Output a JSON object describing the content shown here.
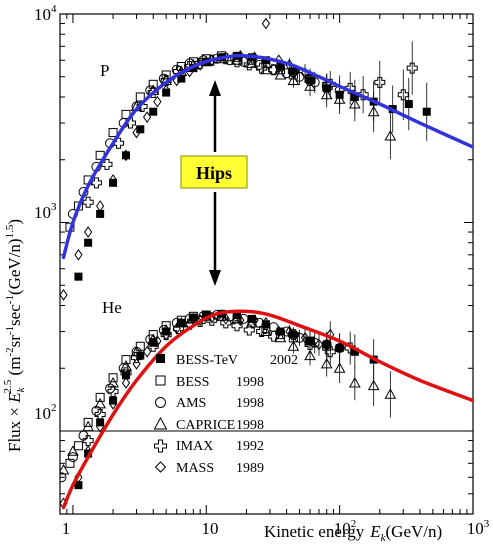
{
  "chart_data": {
    "type": "scatter",
    "x_scale": "log",
    "y_scale": "log",
    "xlim": [
      0.8,
      1000
    ],
    "ylim": [
      40,
      10000
    ],
    "x_ticks": [
      {
        "value": 1,
        "label": "1"
      },
      {
        "value": 10,
        "label": "10"
      },
      {
        "value": 100,
        "label": "10",
        "exp": "2"
      },
      {
        "value": 1000,
        "label": "10",
        "exp": "3"
      }
    ],
    "y_ticks": [
      {
        "value": 100,
        "label": "10",
        "exp": "2"
      },
      {
        "value": 1000,
        "label": "10",
        "exp": "3"
      },
      {
        "value": 10000,
        "label": "10",
        "exp": "4"
      }
    ],
    "xlabel": {
      "prefix": "Kinetic energy",
      "var": "E",
      "sub": "k",
      "suffix": "(GeV/n)"
    },
    "ylabel": {
      "prefix": "Flux × ",
      "var": "E",
      "sub": "k",
      "sup": "2.5",
      "unit_open": " (m",
      "u1": "-2",
      "u2": "sr",
      "u3": "-1",
      "u4": "sec",
      "u5": "-1",
      "u6": "(GeV/n)",
      "u7": "1.5",
      "unit_close": ")"
    },
    "reference_line_y": 100,
    "annotations": {
      "proton": "P",
      "helium": "He",
      "hips": "Hips"
    },
    "colors": {
      "proton_model": "#3333dd",
      "helium_model": "#dd1111",
      "hips_bg": "#ffff33",
      "hips_border": "#888800"
    },
    "legend": [
      {
        "marker": "filled-square",
        "name": "BESS-TeV",
        "year": "2002"
      },
      {
        "marker": "open-square",
        "name": "BESS",
        "year": "1998"
      },
      {
        "marker": "open-circle",
        "name": "AMS",
        "year": "1998"
      },
      {
        "marker": "open-triangle",
        "name": "CAPRICE",
        "year": "1998"
      },
      {
        "marker": "open-cross",
        "name": "IMAX",
        "year": "1992"
      },
      {
        "marker": "diamond",
        "name": "MASS",
        "year": "1989"
      }
    ],
    "model_curves": [
      {
        "id": "proton-model",
        "color": "#3333dd",
        "points": [
          [
            0.85,
            680
          ],
          [
            1,
            1000
          ],
          [
            1.3,
            1500
          ],
          [
            2,
            2400
          ],
          [
            3,
            3500
          ],
          [
            5,
            4700
          ],
          [
            8,
            5600
          ],
          [
            12,
            6100
          ],
          [
            20,
            6300
          ],
          [
            40,
            5800
          ],
          [
            70,
            5000
          ],
          [
            100,
            4500
          ],
          [
            200,
            3700
          ],
          [
            400,
            3000
          ],
          [
            1000,
            2300
          ]
        ]
      },
      {
        "id": "helium-model",
        "color": "#dd1111",
        "points": [
          [
            0.85,
            43
          ],
          [
            1,
            55
          ],
          [
            1.3,
            75
          ],
          [
            2,
            120
          ],
          [
            3,
            175
          ],
          [
            5,
            255
          ],
          [
            8,
            320
          ],
          [
            12,
            365
          ],
          [
            20,
            375
          ],
          [
            30,
            360
          ],
          [
            50,
            320
          ],
          [
            100,
            270
          ],
          [
            200,
            215
          ],
          [
            400,
            175
          ],
          [
            1000,
            140
          ]
        ]
      }
    ],
    "series": [
      {
        "marker": "filled-square",
        "points": [
          [
            1.1,
            550
          ],
          [
            1.3,
            800
          ],
          [
            1.6,
            1100
          ],
          [
            2,
            1550
          ],
          [
            2.5,
            2100
          ],
          [
            3.2,
            2800
          ],
          [
            4,
            3400
          ],
          [
            5,
            4200
          ],
          [
            6.5,
            4900
          ],
          [
            8,
            5500
          ],
          [
            10,
            5900
          ],
          [
            13,
            6200
          ],
          [
            17,
            6300
          ],
          [
            22,
            6200
          ],
          [
            28,
            6000
          ],
          [
            36,
            5600
          ],
          [
            45,
            5300
          ],
          [
            60,
            4800
          ],
          [
            80,
            4400
          ],
          [
            100,
            4100
          ],
          [
            130,
            4000
          ],
          [
            180,
            3800
          ],
          [
            250,
            3500
          ],
          [
            330,
            3700
          ],
          [
            450,
            3400
          ],
          [
            1.1,
            55
          ],
          [
            1.3,
            78
          ],
          [
            1.6,
            110
          ],
          [
            2,
            140
          ],
          [
            2.5,
            185
          ],
          [
            3.2,
            230
          ],
          [
            4,
            265
          ],
          [
            5,
            300
          ],
          [
            6.5,
            330
          ],
          [
            8,
            350
          ],
          [
            10,
            360
          ],
          [
            13,
            365
          ],
          [
            17,
            360
          ],
          [
            22,
            345
          ],
          [
            28,
            325
          ],
          [
            36,
            300
          ],
          [
            45,
            290
          ],
          [
            60,
            270
          ],
          [
            80,
            260
          ],
          [
            100,
            250
          ],
          [
            130,
            240
          ],
          [
            180,
            220
          ]
        ]
      },
      {
        "marker": "open-square",
        "points": [
          [
            0.95,
            950
          ],
          [
            1.1,
            1200
          ],
          [
            1.3,
            1600
          ],
          [
            1.6,
            2100
          ],
          [
            2,
            2700
          ],
          [
            2.5,
            3300
          ],
          [
            3.2,
            4000
          ],
          [
            4,
            4600
          ],
          [
            5,
            5100
          ],
          [
            6.5,
            5600
          ],
          [
            8,
            5900
          ],
          [
            10,
            6100
          ],
          [
            13,
            6300
          ],
          [
            17,
            6200
          ],
          [
            22,
            6000
          ],
          [
            28,
            5800
          ],
          [
            36,
            5400
          ],
          [
            45,
            5100
          ],
          [
            60,
            4900
          ],
          [
            80,
            4500
          ],
          [
            0.95,
            70
          ],
          [
            1.1,
            85
          ],
          [
            1.3,
            110
          ],
          [
            1.6,
            145
          ],
          [
            2,
            180
          ],
          [
            2.5,
            220
          ],
          [
            3.2,
            255
          ],
          [
            4,
            290
          ],
          [
            5,
            320
          ],
          [
            6.5,
            340
          ],
          [
            8,
            355
          ],
          [
            10,
            360
          ],
          [
            13,
            355
          ],
          [
            17,
            345
          ],
          [
            22,
            330
          ],
          [
            28,
            310
          ],
          [
            36,
            290
          ],
          [
            45,
            280
          ],
          [
            60,
            270
          ],
          [
            80,
            255
          ]
        ]
      },
      {
        "marker": "open-circle",
        "points": [
          [
            1,
            1100
          ],
          [
            1.2,
            1400
          ],
          [
            1.5,
            1850
          ],
          [
            1.9,
            2400
          ],
          [
            2.4,
            3000
          ],
          [
            3,
            3600
          ],
          [
            3.8,
            4300
          ],
          [
            4.8,
            4900
          ],
          [
            6,
            5400
          ],
          [
            7.5,
            5800
          ],
          [
            9.5,
            6000
          ],
          [
            12,
            6100
          ],
          [
            15,
            6000
          ],
          [
            19,
            5900
          ],
          [
            25,
            5700
          ],
          [
            32,
            5400
          ],
          [
            40,
            5200
          ],
          [
            50,
            5000
          ],
          [
            65,
            4700
          ],
          [
            80,
            4500
          ],
          [
            100,
            4300
          ],
          [
            0.82,
            60
          ],
          [
            1,
            75
          ],
          [
            1.2,
            95
          ],
          [
            1.5,
            125
          ],
          [
            1.9,
            160
          ],
          [
            2.4,
            200
          ],
          [
            3,
            240
          ],
          [
            3.8,
            275
          ],
          [
            4.8,
            305
          ],
          [
            6,
            330
          ],
          [
            7.5,
            345
          ],
          [
            9.5,
            355
          ],
          [
            12,
            360
          ],
          [
            15,
            355
          ],
          [
            19,
            345
          ],
          [
            25,
            330
          ],
          [
            32,
            315
          ],
          [
            40,
            300
          ],
          [
            50,
            280
          ],
          [
            65,
            265
          ],
          [
            80,
            260
          ],
          [
            100,
            250
          ]
        ]
      },
      {
        "marker": "open-triangle",
        "points": [
          [
            3,
            3600
          ],
          [
            4,
            4300
          ],
          [
            5,
            4800
          ],
          [
            6.5,
            5300
          ],
          [
            8,
            5700
          ],
          [
            10,
            5900
          ],
          [
            13,
            6100
          ],
          [
            17,
            6000
          ],
          [
            22,
            5800
          ],
          [
            28,
            5400
          ],
          [
            36,
            5100
          ],
          [
            45,
            4800
          ],
          [
            60,
            4500
          ],
          [
            80,
            4100
          ],
          [
            100,
            3900
          ],
          [
            130,
            3700
          ],
          [
            180,
            3400
          ],
          [
            240,
            2600
          ],
          [
            0.85,
            65
          ],
          [
            1,
            80
          ],
          [
            1.3,
            105
          ],
          [
            1.6,
            135
          ],
          [
            2,
            170
          ],
          [
            2.5,
            205
          ],
          [
            3,
            240
          ],
          [
            4,
            275
          ],
          [
            5,
            305
          ],
          [
            6.5,
            330
          ],
          [
            8,
            345
          ],
          [
            10,
            355
          ],
          [
            13,
            355
          ],
          [
            17,
            345
          ],
          [
            22,
            330
          ],
          [
            28,
            300
          ],
          [
            36,
            280
          ],
          [
            45,
            255
          ],
          [
            60,
            230
          ],
          [
            80,
            210
          ],
          [
            100,
            200
          ],
          [
            130,
            170
          ],
          [
            180,
            165
          ],
          [
            240,
            150
          ]
        ]
      },
      {
        "marker": "open-cross",
        "points": [
          [
            1.3,
            1250
          ],
          [
            1.5,
            1550
          ],
          [
            1.8,
            1900
          ],
          [
            2.2,
            2400
          ],
          [
            2.7,
            3000
          ],
          [
            3.3,
            3600
          ],
          [
            4,
            4200
          ],
          [
            5,
            4800
          ],
          [
            6.2,
            5300
          ],
          [
            7.5,
            5600
          ],
          [
            9,
            5800
          ],
          [
            11,
            6000
          ],
          [
            14,
            6100
          ],
          [
            17,
            5900
          ],
          [
            21,
            5700
          ],
          [
            26,
            5500
          ],
          [
            32,
            5400
          ],
          [
            45,
            5300
          ],
          [
            60,
            4800
          ],
          [
            85,
            4600
          ],
          [
            120,
            4400
          ],
          [
            150,
            4100
          ],
          [
            200,
            4700
          ],
          [
            300,
            4100
          ],
          [
            350,
            5500
          ],
          [
            1.3,
            90
          ],
          [
            1.6,
            120
          ],
          [
            2,
            155
          ],
          [
            2.5,
            190
          ],
          [
            3,
            225
          ],
          [
            4,
            255
          ],
          [
            5,
            290
          ],
          [
            6.2,
            310
          ],
          [
            7.5,
            325
          ],
          [
            9,
            335
          ],
          [
            11,
            340
          ],
          [
            14,
            330
          ],
          [
            17,
            320
          ],
          [
            21,
            305
          ],
          [
            26,
            300
          ],
          [
            32,
            285
          ],
          [
            45,
            290
          ],
          [
            60,
            260
          ],
          [
            85,
            240
          ],
          [
            120,
            250
          ]
        ]
      },
      {
        "marker": "diamond",
        "points": [
          [
            0.85,
            450
          ],
          [
            1.1,
            700
          ],
          [
            1.3,
            900
          ],
          [
            1.6,
            1200
          ],
          [
            2,
            1600
          ],
          [
            2.5,
            2100
          ],
          [
            3,
            2700
          ],
          [
            3.6,
            3200
          ],
          [
            4.3,
            3800
          ],
          [
            5,
            4300
          ],
          [
            6,
            4800
          ],
          [
            7.5,
            5300
          ],
          [
            9,
            5700
          ],
          [
            11,
            6000
          ],
          [
            14,
            6200
          ],
          [
            18,
            6300
          ],
          [
            23,
            6200
          ],
          [
            28,
            9000
          ],
          [
            35,
            6000
          ],
          [
            42,
            5700
          ],
          [
            55,
            5200
          ],
          [
            0.85,
            45
          ],
          [
            1.1,
            60
          ],
          [
            1.3,
            80
          ],
          [
            1.6,
            105
          ],
          [
            2,
            135
          ],
          [
            2.5,
            170
          ],
          [
            3,
            210
          ],
          [
            3.6,
            240
          ],
          [
            4.3,
            270
          ],
          [
            5,
            290
          ],
          [
            6,
            310
          ],
          [
            7.5,
            325
          ],
          [
            9,
            340
          ],
          [
            11,
            350
          ],
          [
            14,
            345
          ],
          [
            18,
            340
          ],
          [
            23,
            340
          ],
          [
            28,
            330
          ],
          [
            35,
            300
          ],
          [
            42,
            300
          ],
          [
            55,
            280
          ],
          [
            70,
            260
          ],
          [
            85,
            290
          ]
        ]
      }
    ]
  }
}
